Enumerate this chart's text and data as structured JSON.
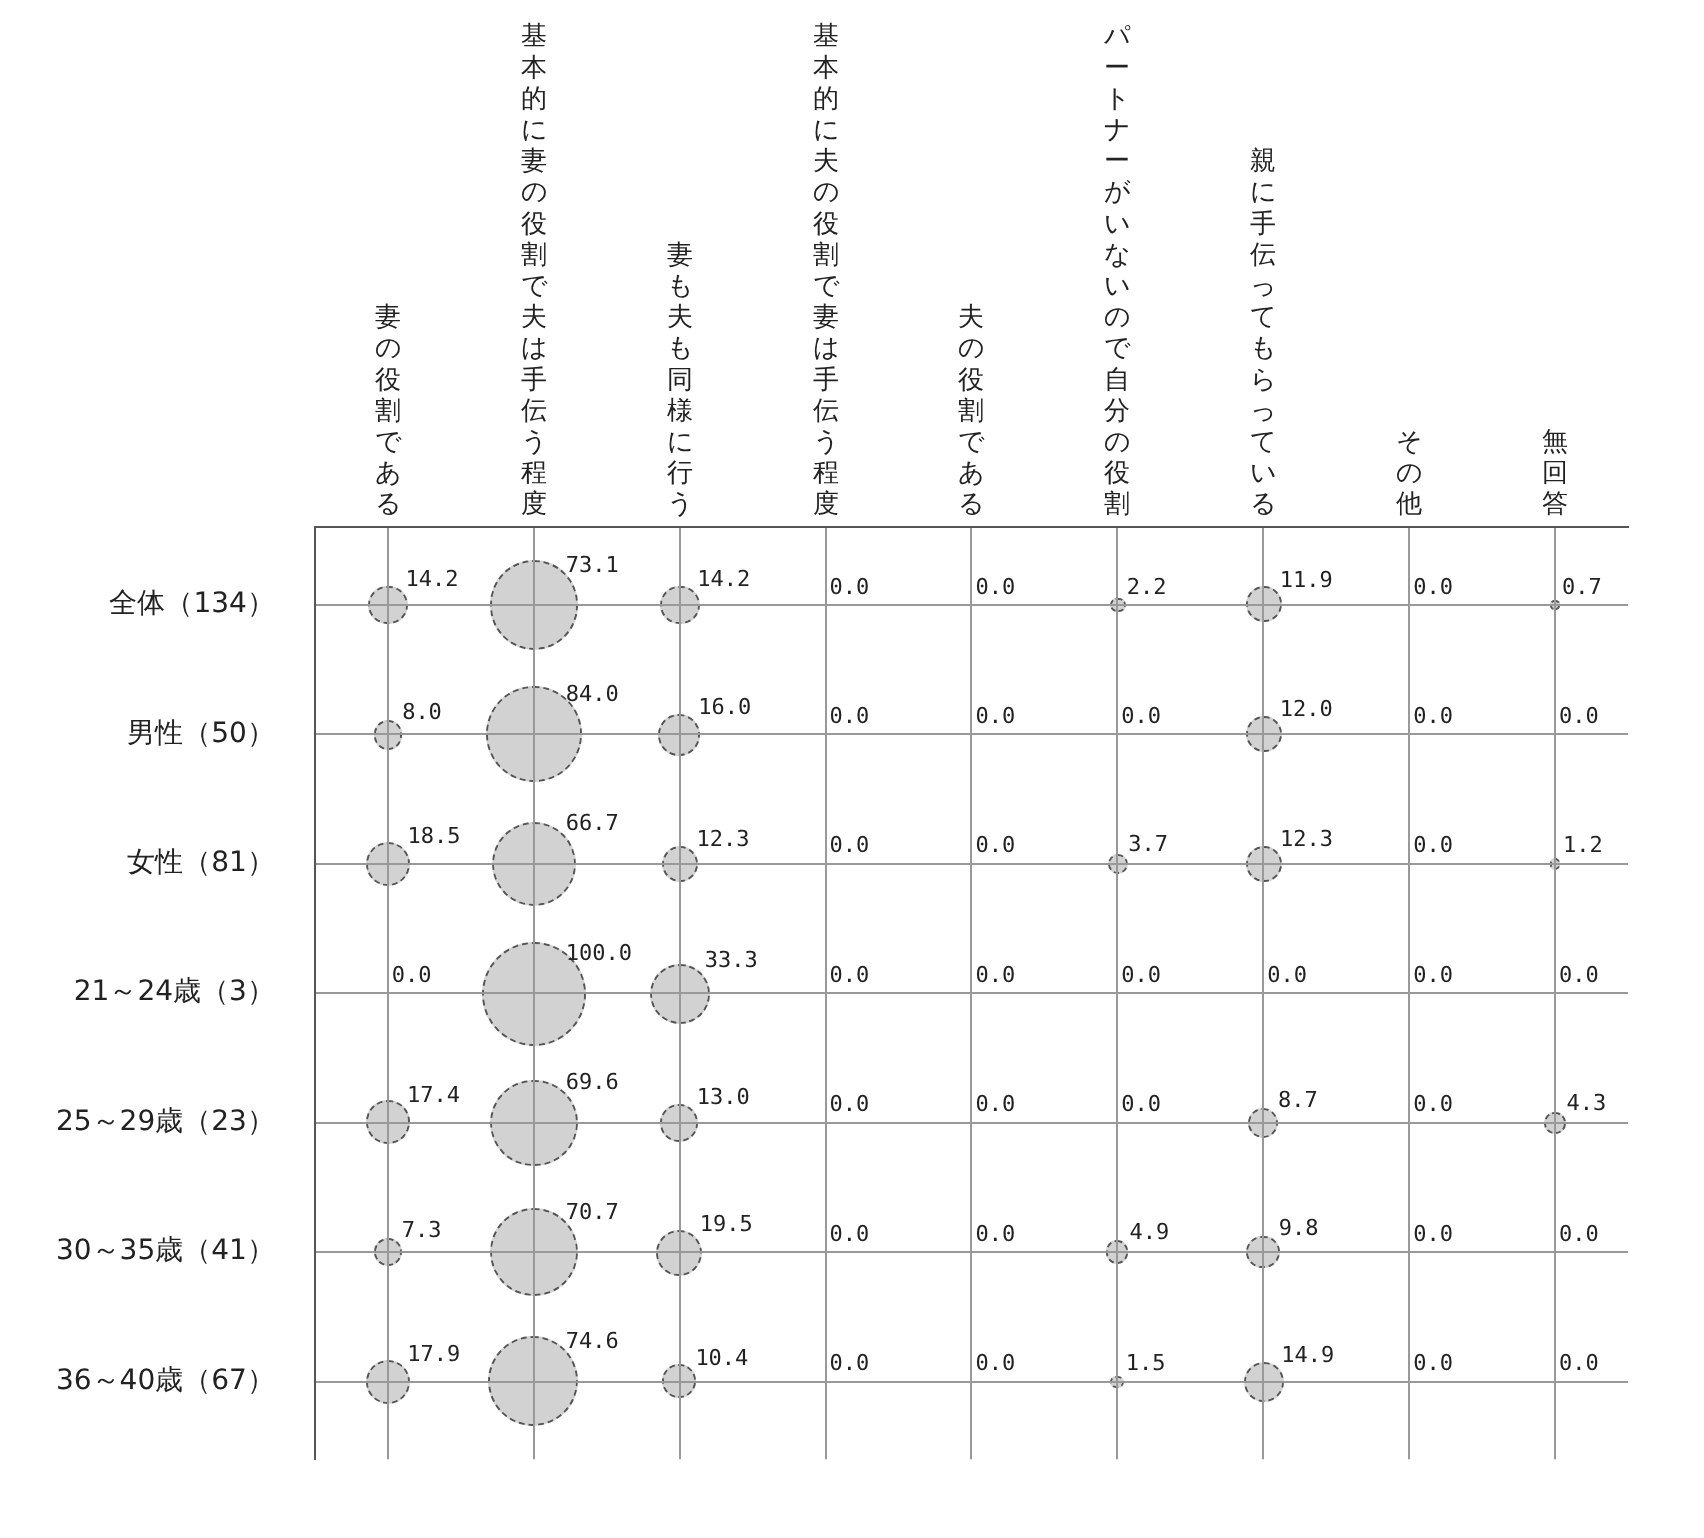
{
  "chart_data": {
    "type": "heatmap",
    "categories": [
      "妻の役割である",
      "基本的に妻の役割で夫は手伝う程度",
      "妻も夫も同様に行う",
      "基本的に夫の役割で妻は手伝う程度",
      "夫の役割である",
      "パートナーがいないので自分の役割",
      "親に手伝ってもらっている",
      "その他",
      "無回答"
    ],
    "y_categories": [
      "全体（134）",
      "男性（50）",
      "女性（81）",
      "21～24歳（3）",
      "25～29歳（23）",
      "30～35歳（41）",
      "36～40歳（67）"
    ],
    "cells": [
      [
        14.2,
        73.1,
        14.2,
        0.0,
        0.0,
        2.2,
        11.9,
        0.0,
        0.7
      ],
      [
        8.0,
        84.0,
        16.0,
        0.0,
        0.0,
        0.0,
        12.0,
        0.0,
        0.0
      ],
      [
        18.5,
        66.7,
        12.3,
        0.0,
        0.0,
        3.7,
        12.3,
        0.0,
        1.2
      ],
      [
        0.0,
        100.0,
        33.3,
        0.0,
        0.0,
        0.0,
        0.0,
        0.0,
        0.0
      ],
      [
        17.4,
        69.6,
        13.0,
        0.0,
        0.0,
        0.0,
        8.7,
        0.0,
        4.3
      ],
      [
        7.3,
        70.7,
        19.5,
        0.0,
        0.0,
        4.9,
        9.8,
        0.0,
        0.0
      ],
      [
        17.9,
        74.6,
        10.4,
        0.0,
        0.0,
        1.5,
        14.9,
        0.0,
        0.0
      ]
    ],
    "cell_labels": [
      [
        "14.2",
        "73.1",
        "14.2",
        "0.0",
        "0.0",
        "2.2",
        "11.9",
        "0.0",
        "0.7"
      ],
      [
        "8.0",
        "84.0",
        "16.0",
        "0.0",
        "0.0",
        "0.0",
        "12.0",
        "0.0",
        "0.0"
      ],
      [
        "18.5",
        "66.7",
        "12.3",
        "0.0",
        "0.0",
        "3.7",
        "12.3",
        "0.0",
        "1.2"
      ],
      [
        "0.0",
        "100.0",
        "33.3",
        "0.0",
        "0.0",
        "0.0",
        "0.0",
        "0.0",
        "0.0"
      ],
      [
        "17.4",
        "69.6",
        "13.0",
        "0.0",
        "0.0",
        "0.0",
        "8.7",
        "0.0",
        "4.3"
      ],
      [
        "7.3",
        "70.7",
        "19.5",
        "0.0",
        "0.0",
        "4.9",
        "9.8",
        "0.0",
        "0.0"
      ],
      [
        "17.9",
        "74.6",
        "10.4",
        "0.0",
        "0.0",
        "1.5",
        "14.9",
        "0.0",
        "0.0"
      ]
    ],
    "data_labels": true,
    "grid": true
  }
}
